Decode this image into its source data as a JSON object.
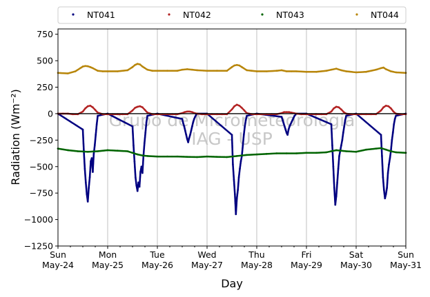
{
  "chart_data": {
    "type": "scatter",
    "xlabel": "Day",
    "ylabel": "Radiation (Wm⁻²)",
    "ylim": [
      -1250,
      800
    ],
    "yticks": [
      -1250,
      -1000,
      -750,
      -500,
      -250,
      0,
      250,
      500,
      750
    ],
    "xlim": [
      "2020-05-24",
      "2020-05-31"
    ],
    "xticks": [
      {
        "day": "Sun",
        "date": "May-24"
      },
      {
        "day": "Mon",
        "date": "May-25"
      },
      {
        "day": "Tue",
        "date": "May-26"
      },
      {
        "day": "Wed",
        "date": "May-27"
      },
      {
        "day": "Thu",
        "date": "May-28"
      },
      {
        "day": "Fri",
        "date": "May-29"
      },
      {
        "day": "Sat",
        "date": "May-30"
      },
      {
        "day": "Sun",
        "date": "May-31"
      }
    ],
    "grid": "vertical",
    "legend": "top",
    "watermark": [
      "Grupo de Micrometeorologia",
      "IAG - USP"
    ],
    "series": [
      {
        "name": "NT041",
        "color": "#000080",
        "days": [
          0,
          0.5,
          0.52,
          0.54,
          0.56,
          0.58,
          0.6,
          0.62,
          0.64,
          0.66,
          0.68,
          0.7,
          0.72,
          0.74,
          0.76,
          0.78,
          0.8,
          1,
          1.5,
          1.52,
          1.54,
          1.56,
          1.58,
          1.6,
          1.62,
          1.64,
          1.66,
          1.68,
          1.7,
          1.72,
          1.74,
          1.76,
          1.78,
          1.8,
          2,
          2.5,
          2.52,
          2.54,
          2.56,
          2.58,
          2.6,
          2.62,
          2.64,
          2.66,
          2.68,
          2.7,
          2.72,
          2.74,
          2.76,
          2.78,
          2.8,
          3,
          3.5,
          3.52,
          3.54,
          3.56,
          3.58,
          3.6,
          3.62,
          3.64,
          3.66,
          3.68,
          3.7,
          3.72,
          3.74,
          3.76,
          3.78,
          3.8,
          4,
          4.5,
          4.52,
          4.54,
          4.56,
          4.58,
          4.6,
          4.62,
          4.64,
          4.66,
          4.68,
          4.7,
          4.72,
          4.74,
          4.76,
          4.78,
          4.8,
          5,
          5.5,
          5.52,
          5.54,
          5.56,
          5.58,
          5.6,
          5.62,
          5.64,
          5.66,
          5.68,
          5.7,
          5.72,
          5.74,
          5.76,
          5.78,
          5.8,
          6,
          6.5,
          6.52,
          6.54,
          6.56,
          6.58,
          6.6,
          6.62,
          6.64,
          6.66,
          6.68,
          6.7,
          6.72,
          6.74,
          6.76,
          6.78,
          6.8,
          7
        ],
        "values": [
          0,
          -150,
          -350,
          -520,
          -650,
          -760,
          -830,
          -700,
          -600,
          -450,
          -420,
          -550,
          -380,
          -300,
          -200,
          -100,
          -20,
          0,
          -120,
          -300,
          -450,
          -600,
          -680,
          -730,
          -650,
          -690,
          -550,
          -500,
          -560,
          -400,
          -280,
          -180,
          -80,
          -20,
          0,
          -50,
          -90,
          -120,
          -160,
          -200,
          -240,
          -270,
          -230,
          -200,
          -160,
          -120,
          -80,
          -50,
          -30,
          -10,
          0,
          0,
          -200,
          -480,
          -620,
          -760,
          -950,
          -800,
          -720,
          -600,
          -520,
          -450,
          -400,
          -300,
          -200,
          -120,
          -60,
          -20,
          0,
          -30,
          -60,
          -90,
          -120,
          -150,
          -180,
          -200,
          -150,
          -120,
          -100,
          -80,
          -60,
          -40,
          -20,
          -10,
          0,
          0,
          -100,
          -300,
          -500,
          -700,
          -860,
          -780,
          -650,
          -520,
          -400,
          -350,
          -300,
          -250,
          -180,
          -120,
          -60,
          -20,
          0,
          -200,
          -400,
          -600,
          -720,
          -800,
          -760,
          -700,
          -560,
          -480,
          -420,
          -350,
          -250,
          -180,
          -100,
          -50,
          -20,
          0
        ]
      },
      {
        "name": "NT042",
        "color": "#b22222",
        "days": [
          0,
          0.1,
          0.2,
          0.3,
          0.4,
          0.5,
          0.55,
          0.6,
          0.65,
          0.7,
          0.75,
          0.8,
          0.9,
          1,
          1.1,
          1.2,
          1.3,
          1.4,
          1.5,
          1.55,
          1.6,
          1.65,
          1.7,
          1.75,
          1.8,
          1.9,
          2,
          2.1,
          2.2,
          2.3,
          2.4,
          2.5,
          2.55,
          2.6,
          2.65,
          2.7,
          2.75,
          2.8,
          2.9,
          3,
          3.1,
          3.2,
          3.3,
          3.4,
          3.5,
          3.55,
          3.6,
          3.65,
          3.7,
          3.75,
          3.8,
          3.9,
          4,
          4.1,
          4.2,
          4.3,
          4.4,
          4.5,
          4.55,
          4.6,
          4.65,
          4.7,
          4.75,
          4.8,
          4.9,
          5,
          5.1,
          5.2,
          5.3,
          5.4,
          5.5,
          5.55,
          5.6,
          5.65,
          5.7,
          5.75,
          5.8,
          5.9,
          6,
          6.1,
          6.2,
          6.3,
          6.4,
          6.5,
          6.55,
          6.6,
          6.65,
          6.7,
          6.75,
          6.8,
          6.9,
          7
        ],
        "values": [
          0,
          0,
          0,
          -5,
          -5,
          20,
          50,
          70,
          75,
          60,
          35,
          10,
          -5,
          -5,
          -5,
          -5,
          -5,
          -5,
          30,
          55,
          65,
          70,
          60,
          35,
          10,
          -5,
          -5,
          -5,
          -5,
          -5,
          -5,
          5,
          15,
          20,
          20,
          15,
          5,
          0,
          -5,
          -5,
          -5,
          -5,
          -5,
          -5,
          40,
          70,
          85,
          75,
          55,
          30,
          5,
          -5,
          -5,
          -5,
          -5,
          -5,
          -5,
          5,
          15,
          15,
          15,
          10,
          5,
          0,
          -5,
          -5,
          -5,
          -5,
          -5,
          -5,
          20,
          50,
          65,
          60,
          40,
          15,
          0,
          -5,
          -5,
          -5,
          -5,
          -5,
          -5,
          30,
          60,
          75,
          70,
          50,
          20,
          0,
          -5,
          -5
        ]
      },
      {
        "name": "NT043",
        "color": "#006400",
        "days": [
          0,
          0.2,
          0.4,
          0.6,
          0.8,
          1,
          1.2,
          1.4,
          1.5,
          1.6,
          1.7,
          1.8,
          2,
          2.2,
          2.4,
          2.6,
          2.8,
          3,
          3.2,
          3.4,
          3.6,
          3.8,
          4,
          4.2,
          4.4,
          4.6,
          4.8,
          5,
          5.2,
          5.4,
          5.5,
          5.6,
          5.7,
          5.8,
          6,
          6.2,
          6.4,
          6.5,
          6.6,
          6.7,
          6.8,
          7
        ],
        "values": [
          -330,
          -345,
          -355,
          -360,
          -355,
          -345,
          -350,
          -355,
          -370,
          -385,
          -395,
          -400,
          -405,
          -405,
          -405,
          -408,
          -410,
          -405,
          -408,
          -410,
          -400,
          -390,
          -385,
          -380,
          -375,
          -375,
          -375,
          -370,
          -370,
          -365,
          -355,
          -345,
          -350,
          -355,
          -360,
          -340,
          -330,
          -325,
          -340,
          -355,
          -365,
          -370
        ]
      },
      {
        "name": "NT044",
        "color": "#b8860b",
        "days": [
          0,
          0.2,
          0.35,
          0.45,
          0.5,
          0.55,
          0.6,
          0.65,
          0.7,
          0.8,
          0.9,
          1,
          1.2,
          1.4,
          1.5,
          1.55,
          1.6,
          1.65,
          1.7,
          1.8,
          1.9,
          2,
          2.2,
          2.4,
          2.5,
          2.6,
          2.7,
          2.8,
          3,
          3.2,
          3.4,
          3.5,
          3.55,
          3.6,
          3.65,
          3.7,
          3.8,
          3.9,
          4,
          4.2,
          4.4,
          4.5,
          4.6,
          4.7,
          4.8,
          5,
          5.2,
          5.4,
          5.5,
          5.6,
          5.7,
          5.8,
          6,
          6.2,
          6.4,
          6.5,
          6.55,
          6.6,
          6.7,
          6.8,
          7
        ],
        "values": [
          385,
          380,
          400,
          430,
          445,
          450,
          448,
          440,
          430,
          405,
          400,
          400,
          400,
          410,
          440,
          460,
          470,
          465,
          445,
          415,
          405,
          405,
          405,
          405,
          415,
          420,
          415,
          410,
          405,
          405,
          405,
          440,
          455,
          460,
          455,
          440,
          410,
          405,
          400,
          400,
          405,
          410,
          400,
          400,
          400,
          395,
          395,
          405,
          415,
          425,
          410,
          400,
          390,
          395,
          415,
          430,
          435,
          420,
          400,
          390,
          385
        ]
      }
    ]
  }
}
